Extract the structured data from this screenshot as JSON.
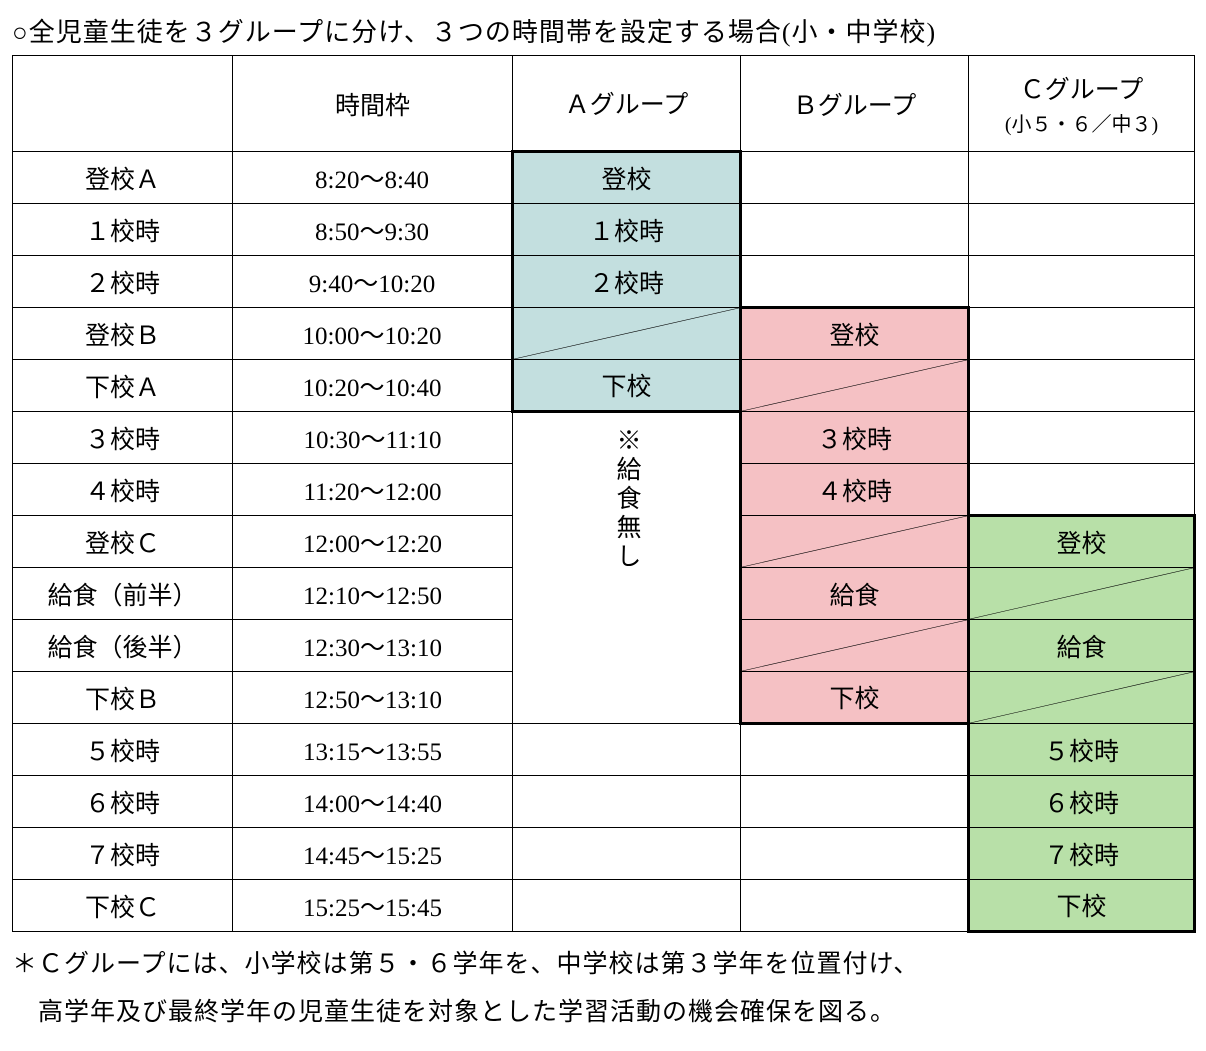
{
  "title": "○全児童生徒を３グループに分け、３つの時間帯を設定する場合(小・中学校)",
  "colors": {
    "groupA": "#c3dfdf",
    "groupB": "#f5c1c4",
    "groupC": "#b8e0a8",
    "border": "#000000",
    "bg": "#ffffff",
    "diagLine": "#000000"
  },
  "header": {
    "blank": "",
    "time": "時間枠",
    "a": "Ａグループ",
    "b": "Ｂグループ",
    "c": "Ｃグループ",
    "c_sub": "(小５・６／中３)"
  },
  "rows": [
    {
      "label": "登校Ａ",
      "time": "8:20～8:40"
    },
    {
      "label": "１校時",
      "time": "8:50～9:30"
    },
    {
      "label": "２校時",
      "time": "9:40～10:20"
    },
    {
      "label": "登校Ｂ",
      "time": "10:00～10:20"
    },
    {
      "label": "下校Ａ",
      "time": "10:20～10:40"
    },
    {
      "label": "３校時",
      "time": "10:30～11:10"
    },
    {
      "label": "４校時",
      "time": "11:20～12:00"
    },
    {
      "label": "登校Ｃ",
      "time": "12:00～12:20"
    },
    {
      "label": "給食（前半）",
      "time": "12:10～12:50"
    },
    {
      "label": "給食（後半）",
      "time": "12:30～13:10"
    },
    {
      "label": "下校Ｂ",
      "time": "12:50～13:10"
    },
    {
      "label": "５校時",
      "time": "13:15～13:55"
    },
    {
      "label": "６校時",
      "time": "14:00～14:40"
    },
    {
      "label": "７校時",
      "time": "14:45～15:25"
    },
    {
      "label": "下校Ｃ",
      "time": "15:25～15:45"
    }
  ],
  "cells": {
    "a0": "登校",
    "a1": "１校時",
    "a2": "２校時",
    "a4": "下校",
    "a_note": "※給食無し",
    "b3": "登校",
    "b5": "３校時",
    "b6": "４校時",
    "b8": "給食",
    "b10": "下校",
    "c7": "登校",
    "c9": "給食",
    "c11": "５校時",
    "c12": "６校時",
    "c13": "７校時",
    "c14": "下校"
  },
  "footnote_l1": "＊Ｃグループには、小学校は第５・６学年を、中学校は第３学年を位置付け、",
  "footnote_l2": "　高学年及び最終学年の児童生徒を対象とした学習活動の機会確保を図る。"
}
